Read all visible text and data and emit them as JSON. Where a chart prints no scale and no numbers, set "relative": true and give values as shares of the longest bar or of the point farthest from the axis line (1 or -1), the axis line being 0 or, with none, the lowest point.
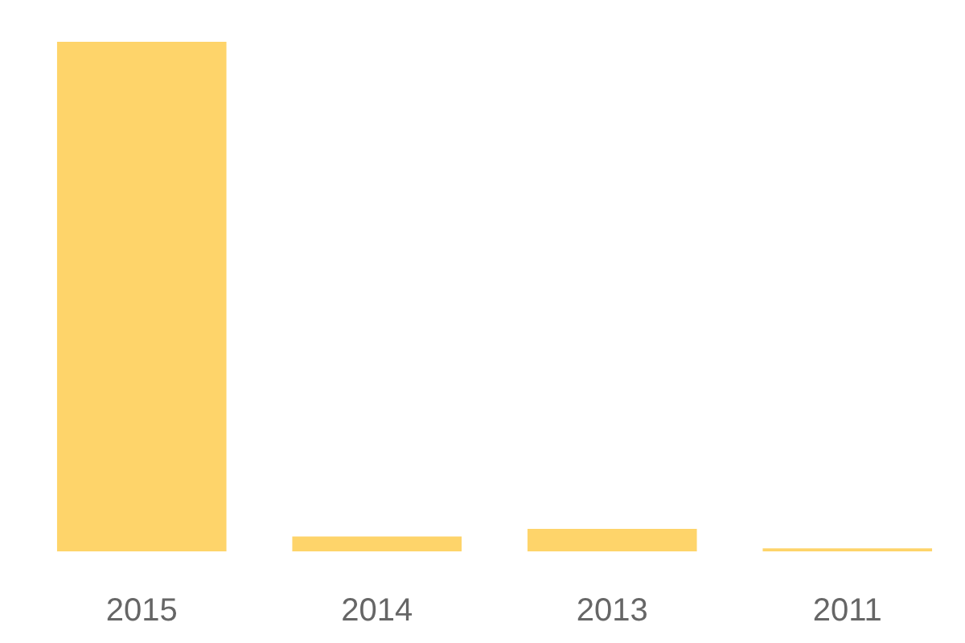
{
  "chart_data": {
    "type": "bar",
    "relative": true,
    "categories": [
      "2015",
      "2014",
      "2013",
      "2011"
    ],
    "values": [
      1,
      0.029,
      0.044,
      0.006
    ],
    "color": "#fed46a"
  }
}
